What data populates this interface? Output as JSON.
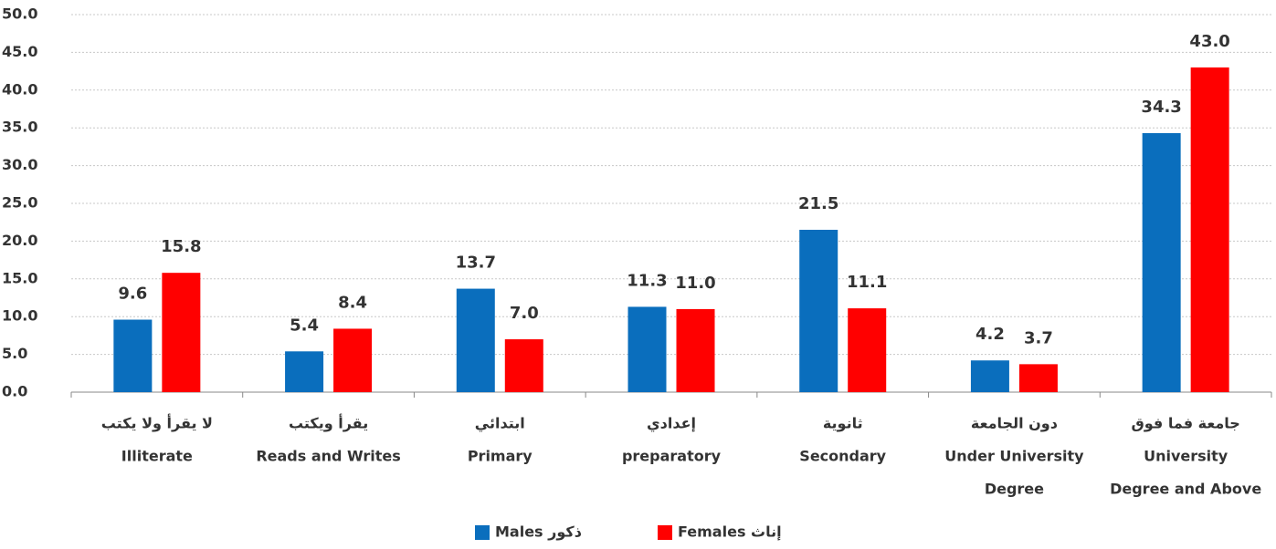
{
  "chart_data": {
    "type": "bar",
    "categories": [
      [
        "لا يقرأ ولا يكتب",
        "Illiterate"
      ],
      [
        "يقرأ ويكتب",
        "Reads and Writes"
      ],
      [
        "ابتدائي",
        "Primary"
      ],
      [
        "إعدادي",
        "preparatory"
      ],
      [
        "ثانوية",
        "Secondary"
      ],
      [
        "دون الجامعة",
        "Under University",
        "Degree"
      ],
      [
        "جامعة فما فوق",
        "University",
        "Degree and Above"
      ]
    ],
    "series": [
      {
        "name": "Males ذكور",
        "color": "#0a6ebd",
        "values": [
          9.6,
          5.4,
          13.7,
          11.3,
          21.5,
          4.2,
          34.3
        ],
        "value_labels": [
          "9.6",
          "5.4",
          "13.7",
          "11.3",
          "21.5",
          "4.2",
          "34.3"
        ]
      },
      {
        "name": "Females  إناث",
        "color": "#ff0000",
        "values": [
          15.8,
          8.4,
          7.0,
          11.0,
          11.1,
          3.7,
          43.0
        ],
        "value_labels": [
          "15.8",
          "8.4",
          "7.0",
          "11.0",
          "11.1",
          "3.7",
          "43.0"
        ]
      }
    ],
    "ylim": [
      0,
      50
    ],
    "yticks": [
      {
        "value": 0,
        "label": "0.0"
      },
      {
        "value": 5,
        "label": "5.0"
      },
      {
        "value": 10,
        "label": "10.0"
      },
      {
        "value": 15,
        "label": "15.0"
      },
      {
        "value": 20,
        "label": "20.0"
      },
      {
        "value": 25,
        "label": "25.0"
      },
      {
        "value": 30,
        "label": "30.0"
      },
      {
        "value": 35,
        "label": "35.0"
      },
      {
        "value": 40,
        "label": "40.0"
      },
      {
        "value": 45,
        "label": "45.0"
      },
      {
        "value": 50,
        "label": "50.0"
      }
    ],
    "grid": true,
    "legend": "bottom"
  }
}
